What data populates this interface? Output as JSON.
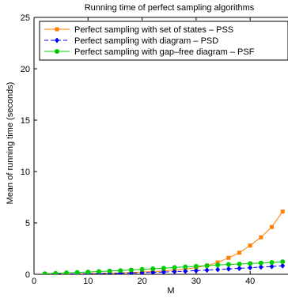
{
  "chart_data": {
    "type": "line",
    "title": "Running time of perfect sampling algorithms",
    "xlabel": "M",
    "ylabel": "Mean of running time (seconds)",
    "xlim": [
      0,
      47
    ],
    "ylim": [
      0,
      25
    ],
    "xticks": [
      0,
      10,
      20,
      30,
      40
    ],
    "yticks": [
      0,
      5,
      10,
      15,
      20,
      25
    ],
    "grid": false,
    "legend_position": "top-left",
    "x": [
      2,
      4,
      6,
      8,
      10,
      12,
      14,
      16,
      18,
      20,
      22,
      24,
      26,
      28,
      30,
      32,
      34,
      36,
      38,
      40,
      42,
      44,
      46
    ],
    "series": [
      {
        "name": "Perfect sampling with set of states – PSS",
        "color": "#ff8000",
        "marker": "square",
        "line_style": "solid",
        "values": [
          0.02,
          0.03,
          0.04,
          0.05,
          0.07,
          0.09,
          0.11,
          0.14,
          0.18,
          0.22,
          0.27,
          0.33,
          0.41,
          0.5,
          0.65,
          0.85,
          1.15,
          1.6,
          2.1,
          2.8,
          3.6,
          4.6,
          6.1
        ]
      },
      {
        "name": "Perfect sampling with diagram – PSD",
        "color": "#0000ff",
        "marker": "diamond",
        "line_style": "dashed",
        "values": [
          0.01,
          0.02,
          0.03,
          0.04,
          0.05,
          0.06,
          0.08,
          0.1,
          0.12,
          0.15,
          0.18,
          0.22,
          0.26,
          0.3,
          0.35,
          0.4,
          0.46,
          0.52,
          0.58,
          0.64,
          0.7,
          0.76,
          0.83
        ]
      },
      {
        "name": "Perfect sampling with gap–free diagram – PSF",
        "color": "#00cc00",
        "marker": "circle",
        "line_style": "solid",
        "values": [
          0.06,
          0.1,
          0.14,
          0.18,
          0.22,
          0.27,
          0.32,
          0.37,
          0.42,
          0.48,
          0.54,
          0.6,
          0.66,
          0.72,
          0.78,
          0.84,
          0.9,
          0.96,
          1.0,
          1.05,
          1.1,
          1.15,
          1.22
        ]
      }
    ]
  }
}
